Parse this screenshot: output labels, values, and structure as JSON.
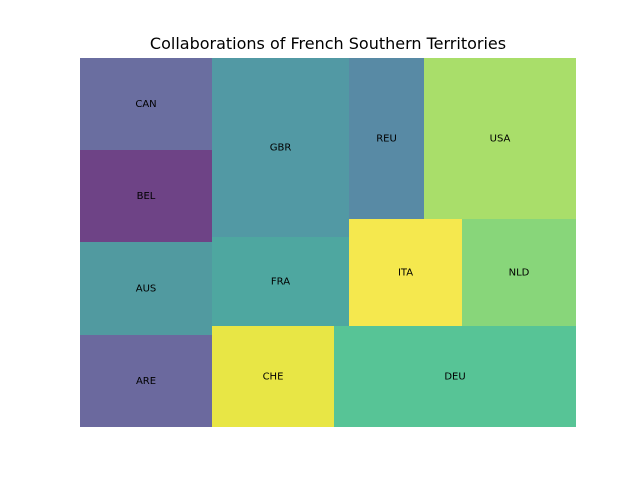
{
  "chart_data": {
    "type": "treemap",
    "title": "Collaborations of French Southern Territories",
    "cells": [
      {
        "label": "CAN",
        "color": "#6a6ea0"
      },
      {
        "label": "BEL",
        "color": "#6e4386"
      },
      {
        "label": "AUS",
        "color": "#519aa0"
      },
      {
        "label": "ARE",
        "color": "#6b699e"
      },
      {
        "label": "GBR",
        "color": "#5299a4"
      },
      {
        "label": "FRA",
        "color": "#4ea7a0"
      },
      {
        "label": "CHE",
        "color": "#e8e645"
      },
      {
        "label": "REU",
        "color": "#588aa5"
      },
      {
        "label": "USA",
        "color": "#a9de6a"
      },
      {
        "label": "ITA",
        "color": "#f5e84e"
      },
      {
        "label": "NLD",
        "color": "#88d67a"
      },
      {
        "label": "DEU",
        "color": "#57c496"
      }
    ]
  }
}
